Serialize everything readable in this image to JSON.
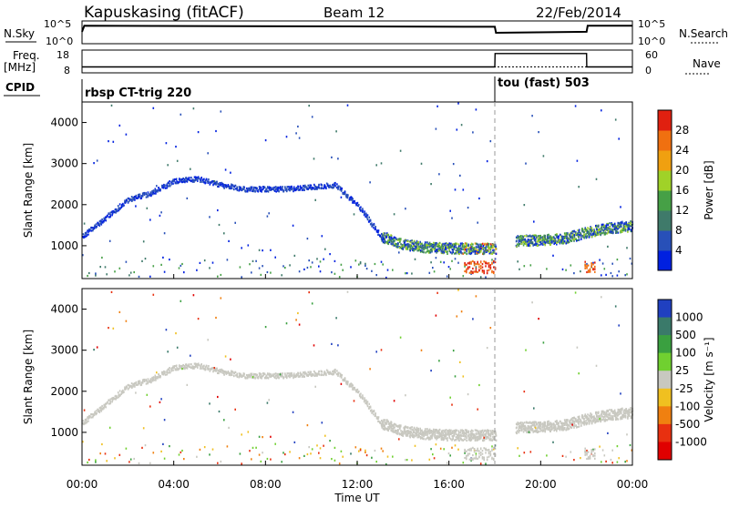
{
  "header": {
    "station": "Kapuskasing (fitACF)",
    "beam": "Beam 12",
    "date": "22/Feb/2014"
  },
  "noise_panel": {
    "left_label": "N.Sky",
    "right_label": "N.Search",
    "left_ticks": [
      "10^5",
      "10^0"
    ],
    "right_ticks": [
      "10^5",
      "10^0"
    ]
  },
  "freq_panel": {
    "left_label_1": "Freq.",
    "left_label_2": "[MHz]",
    "right_label": "Nave",
    "left_ticks": [
      "18",
      "8"
    ],
    "right_ticks": [
      "60",
      "0"
    ]
  },
  "cpid_panel": {
    "label": "CPID",
    "modes": [
      {
        "name": "rbsp CT-trig 220",
        "start_hour": 0
      },
      {
        "name": "tou (fast) 503",
        "start_hour": 18
      }
    ]
  },
  "x_axis": {
    "label": "Time UT",
    "ticks": [
      "00:00",
      "04:00",
      "08:00",
      "12:00",
      "16:00",
      "20:00",
      "00:00"
    ],
    "tick_hours": [
      0,
      4,
      8,
      12,
      16,
      20,
      24
    ]
  },
  "y_axis": {
    "label": "Slant Range [km]",
    "ticks": [
      "1000",
      "2000",
      "3000",
      "4000"
    ],
    "tick_values": [
      1000,
      2000,
      3000,
      4000
    ],
    "range": [
      200,
      4500
    ]
  },
  "power_scale": {
    "label": "Power [dB]",
    "ticks": [
      "4",
      "8",
      "12",
      "16",
      "20",
      "24",
      "28"
    ],
    "colors": [
      "#0020e0",
      "#2850b8",
      "#3f7a6a",
      "#46a046",
      "#a0d228",
      "#f0a010",
      "#f07010",
      "#e02010"
    ]
  },
  "velocity_scale": {
    "label": "Velocity [m s⁻¹]",
    "ticks": [
      "1000",
      "500",
      "100",
      "25",
      "-25",
      "-100",
      "-500",
      "-1000"
    ],
    "colors": [
      "#2040c0",
      "#3a7a6a",
      "#3aa040",
      "#70d030",
      "#c8c8c0",
      "#f0c020",
      "#f08010",
      "#e83010",
      "#e00000"
    ]
  },
  "chart_data": {
    "type": "heatmap",
    "x_range_hours": [
      0,
      24
    ],
    "mode_change_hour": 18,
    "data_gap_hours": [
      18,
      18.9
    ],
    "ground_scatter_band_km": [
      [
        0,
        1250
      ],
      [
        1,
        1700
      ],
      [
        2,
        2150
      ],
      [
        3,
        2300
      ],
      [
        4,
        2600
      ],
      [
        5,
        2650
      ],
      [
        6,
        2500
      ],
      [
        7,
        2400
      ],
      [
        8,
        2400
      ],
      [
        9,
        2400
      ],
      [
        10,
        2450
      ],
      [
        11,
        2500
      ],
      [
        12,
        2000
      ],
      [
        13,
        1250
      ],
      [
        14,
        1050
      ],
      [
        15,
        980
      ],
      [
        16,
        950
      ],
      [
        17,
        950
      ],
      [
        18,
        950
      ],
      [
        19,
        1150
      ],
      [
        20,
        1150
      ],
      [
        21,
        1200
      ],
      [
        22,
        1350
      ],
      [
        23,
        1450
      ],
      [
        24,
        1500
      ]
    ],
    "noise_level_profile": [
      [
        0,
        0.55
      ],
      [
        0.1,
        0.85
      ],
      [
        18,
        0.8
      ],
      [
        18.05,
        0.5
      ],
      [
        22,
        0.55
      ],
      [
        22.05,
        0.85
      ],
      [
        24,
        0.85
      ]
    ],
    "freq_mhz_profile": [
      [
        0,
        10.5
      ],
      [
        24,
        10.5
      ]
    ],
    "nave_profile": [
      [
        0,
        15
      ],
      [
        18,
        15
      ],
      [
        18.01,
        55
      ],
      [
        22,
        55
      ],
      [
        22.01,
        15
      ],
      [
        24,
        15
      ]
    ]
  }
}
